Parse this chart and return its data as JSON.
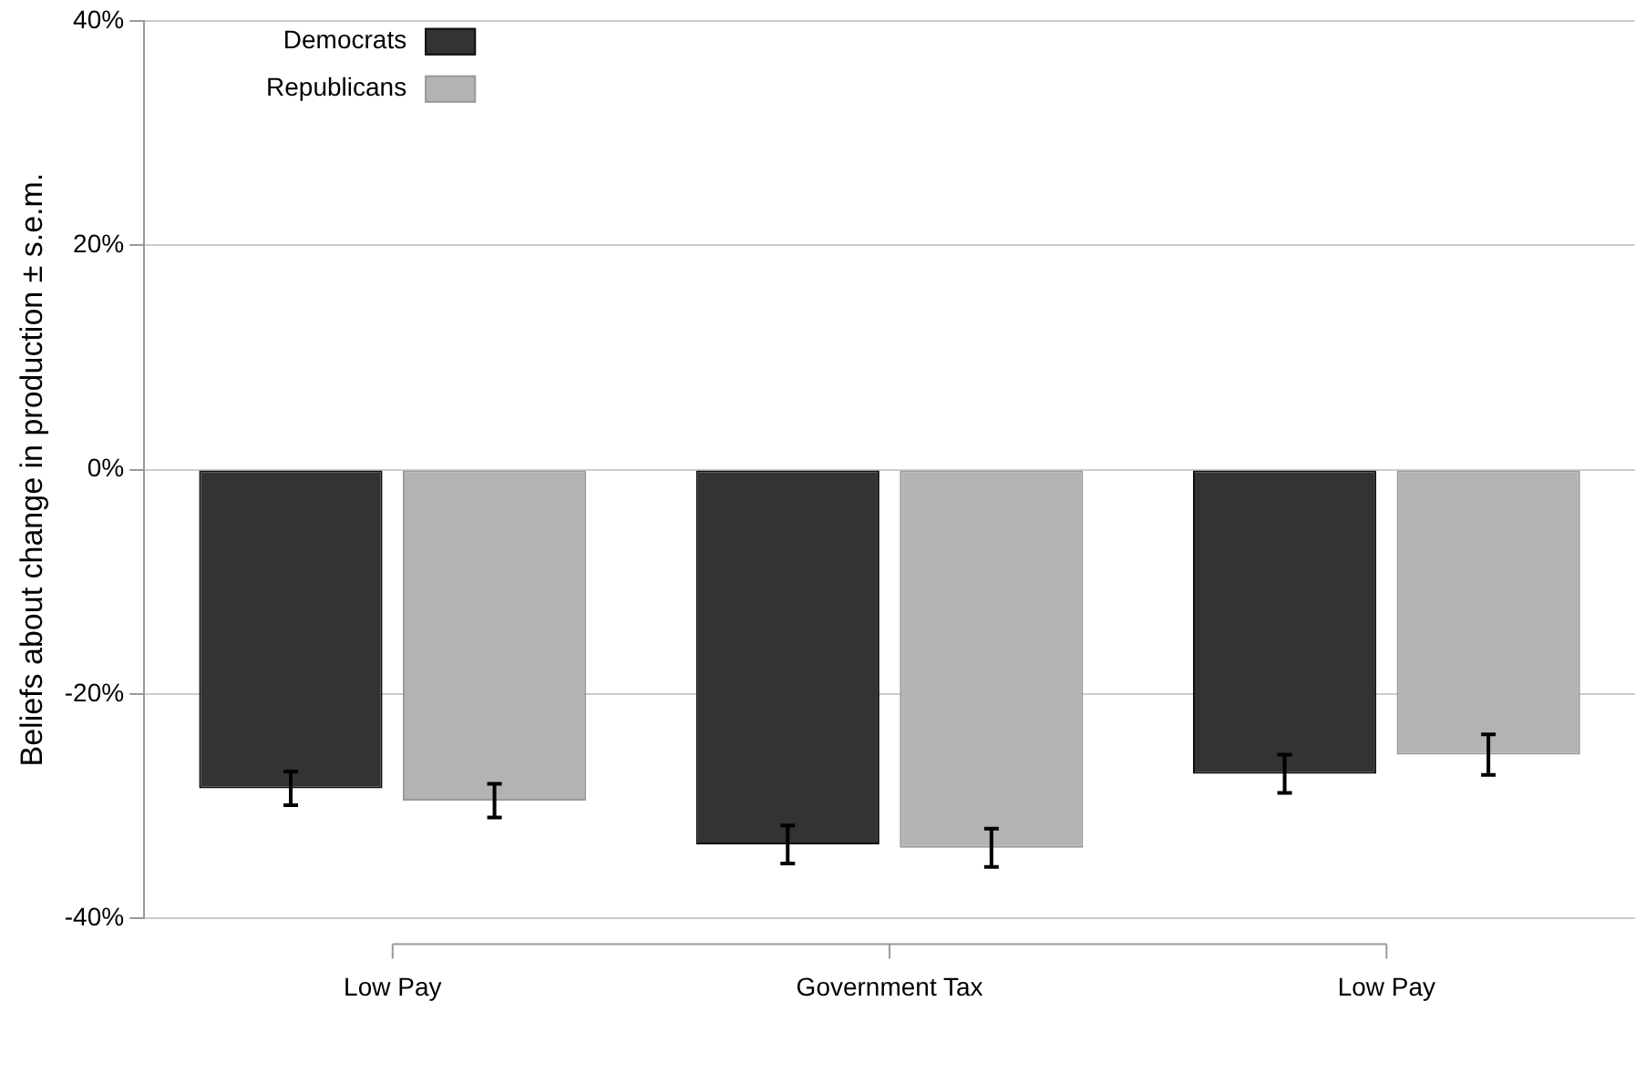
{
  "chart_data": {
    "type": "bar",
    "ylabel": "Beliefs about change in production ± s.e.m.",
    "categories": [
      "Low Pay",
      "Government Tax",
      "Low Pay"
    ],
    "series": [
      {
        "name": "Democrats",
        "color": "#333333",
        "values": [
          -28.4,
          -33.4,
          -27.1
        ],
        "errors": [
          1.5,
          1.7,
          1.7
        ]
      },
      {
        "name": "Republicans",
        "color": "#b3b3b3",
        "values": [
          -29.5,
          -33.7,
          -25.4
        ],
        "errors": [
          1.5,
          1.7,
          1.8
        ]
      }
    ],
    "ylim": [
      -40,
      40
    ],
    "yticks": [
      {
        "value": -40,
        "label": "-40%"
      },
      {
        "value": -20,
        "label": "-20%"
      },
      {
        "value": 0,
        "label": "0%"
      },
      {
        "value": 20,
        "label": "20%"
      },
      {
        "value": 40,
        "label": "40%"
      }
    ],
    "grid": "y",
    "legend": "top left"
  }
}
